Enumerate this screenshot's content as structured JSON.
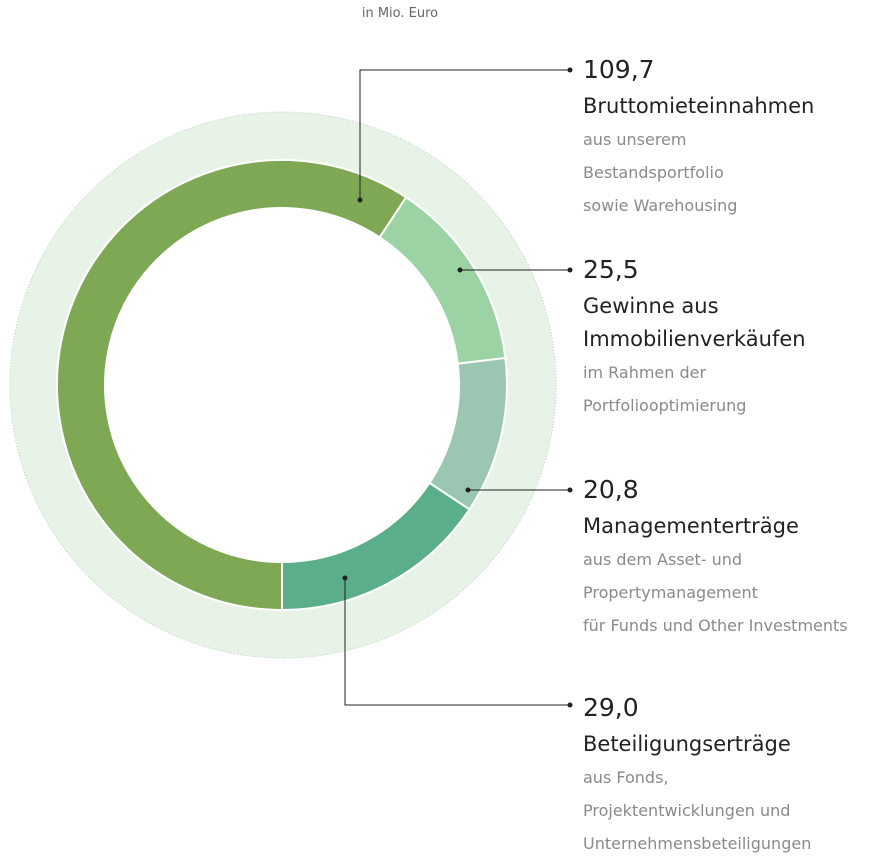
{
  "chart_data": {
    "type": "pie",
    "subtitle": "in Mio. Euro",
    "categories": [
      "Bruttomieteinnahmen",
      "Gewinne aus Immobilienverkäufen",
      "Managementerträge",
      "Beteiligungserträge"
    ],
    "descriptions": [
      [
        "aus unserem",
        "Bestandsportfolio",
        "sowie Warehousing"
      ],
      [
        "im Rahmen der",
        "Portfoliooptimierung"
      ],
      [
        "aus dem Asset- und",
        "Propertymanagement",
        "für Funds und Other Investments"
      ],
      [
        "aus Fonds,",
        "Projektentwicklungen und",
        "Unternehmensbeteiligungen"
      ]
    ],
    "values": [
      109.7,
      25.5,
      20.8,
      29.0
    ],
    "value_labels": [
      "109,7",
      "25,5",
      "20,8",
      "29,0"
    ],
    "colors": [
      "#7fa855",
      "#9bd3a5",
      "#9bc7b2",
      "#5aae8a"
    ]
  }
}
